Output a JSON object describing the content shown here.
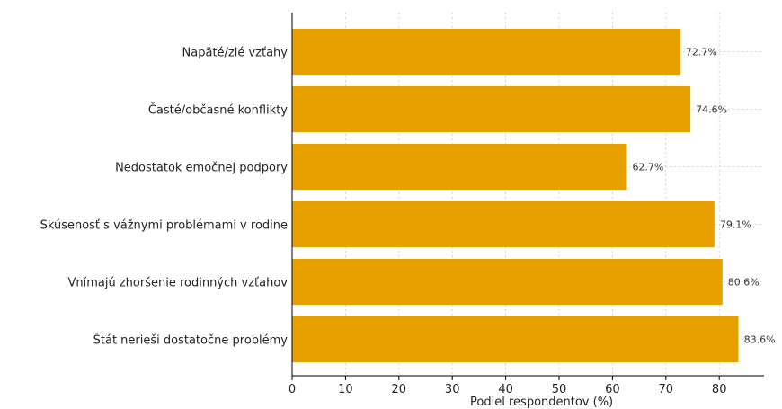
{
  "chart_data": {
    "type": "bar",
    "orientation": "horizontal",
    "categories": [
      "Napäté/zlé vzťahy",
      "Časté/občasné konflikty",
      "Nedostatok emočnej podpory",
      "Skúsenosť s vážnymi problémami v rodine",
      "Vnímajú zhoršenie rodinných vzťahov",
      "Štát nerieši dostatočne problémy"
    ],
    "values": [
      72.7,
      74.6,
      62.7,
      79.1,
      80.6,
      83.6
    ],
    "value_labels": [
      "72.7%",
      "74.6%",
      "62.7%",
      "79.1%",
      "80.6%",
      "83.6%"
    ],
    "xlabel": "Podiel respondentov (%)",
    "xlim": [
      0,
      88
    ],
    "x_ticks": [
      0,
      10,
      20,
      30,
      40,
      50,
      60,
      70,
      80
    ],
    "grid": "x-dashed",
    "bar_color": "#E8A000"
  }
}
